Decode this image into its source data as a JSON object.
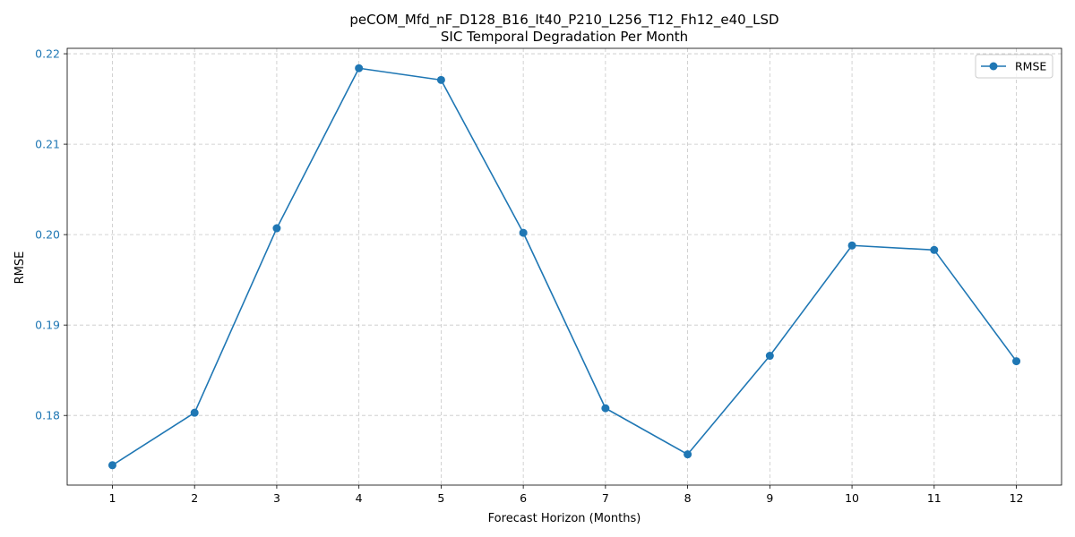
{
  "chart_data": {
    "type": "line",
    "title": "peCOM_Mfd_nF_D128_B16_It40_P210_L256_T12_Fh12_e40_LSD",
    "subtitle": "SIC Temporal Degradation Per Month",
    "xlabel": "Forecast Horizon (Months)",
    "ylabel": "RMSE",
    "x": [
      1,
      2,
      3,
      4,
      5,
      6,
      7,
      8,
      9,
      10,
      11,
      12
    ],
    "xticks": [
      "1",
      "2",
      "3",
      "4",
      "5",
      "6",
      "7",
      "8",
      "9",
      "10",
      "11",
      "12"
    ],
    "xlim": [
      0.45,
      12.55
    ],
    "ylim": [
      0.1723,
      0.2206
    ],
    "yticks": [
      "0.18",
      "0.19",
      "0.20",
      "0.21",
      "0.22"
    ],
    "ytick_values": [
      0.18,
      0.19,
      0.2,
      0.21,
      0.22
    ],
    "grid": true,
    "grid_style": "dashed",
    "legend_position": "top-right",
    "series": [
      {
        "name": "RMSE",
        "color": "#1f77b4",
        "marker": "circle",
        "values": [
          0.1745,
          0.1803,
          0.2007,
          0.2184,
          0.2171,
          0.2002,
          0.1808,
          0.1757,
          0.1866,
          0.1988,
          0.1983,
          0.186
        ]
      }
    ],
    "ytick_color": "#1f77b4"
  }
}
